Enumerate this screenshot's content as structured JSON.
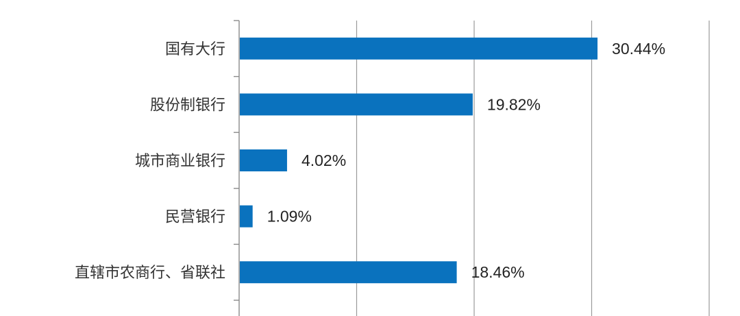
{
  "chart_data": {
    "type": "bar",
    "orientation": "horizontal",
    "title": "",
    "xlabel": "",
    "ylabel": "",
    "categories": [
      "国有大行",
      "股份制银行",
      "城市商业银行",
      "民营银行",
      "直辖市农商行、省联社"
    ],
    "values": [
      30.44,
      19.82,
      4.02,
      1.09,
      18.46
    ],
    "value_labels": [
      "30.44%",
      "19.82%",
      "4.02%",
      "1.09%",
      "18.46%"
    ],
    "xlim": [
      0,
      40
    ],
    "x_gridlines": [
      0,
      10,
      20,
      30,
      40
    ],
    "grid": true,
    "legend": "none",
    "bar_color": "#0a72be"
  }
}
